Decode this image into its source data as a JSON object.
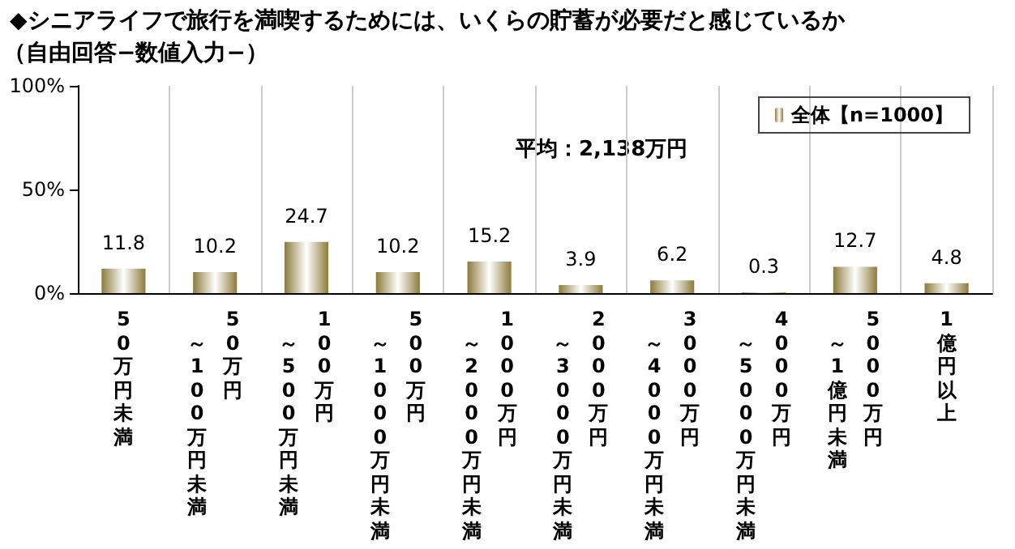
{
  "chart_data": {
    "type": "bar",
    "title": "◆シニアライフで旅行を満喫するためには、いくらの貯蓄が必要だと感じているか",
    "subtitle": "（自由回答−数値入力−）",
    "categories": [
      "50万円未満",
      "50万円～100万円未満",
      "100万円～500万円未満",
      "500万円～1000万円未満",
      "1000万円～2000万円未満",
      "2000万円～3000万円未満",
      "3000万円～4000万円未満",
      "4000万円～5000万円未満",
      "5000万円～1億円未満",
      "1億円以上"
    ],
    "series": [
      {
        "name": "全体【n=1000】",
        "color": "#8c7b3c",
        "values": [
          11.8,
          10.2,
          24.7,
          10.2,
          15.2,
          3.9,
          6.2,
          0.3,
          12.7,
          4.8
        ]
      }
    ],
    "data_labels": true,
    "ylim": [
      0,
      100
    ],
    "yticks": [
      {
        "value": 0,
        "label": "0%"
      },
      {
        "value": 50,
        "label": "50%"
      },
      {
        "value": 100,
        "label": "100%"
      }
    ],
    "grid": "x",
    "legend": "top right",
    "annotations": [
      "平均：2,138万円"
    ]
  }
}
